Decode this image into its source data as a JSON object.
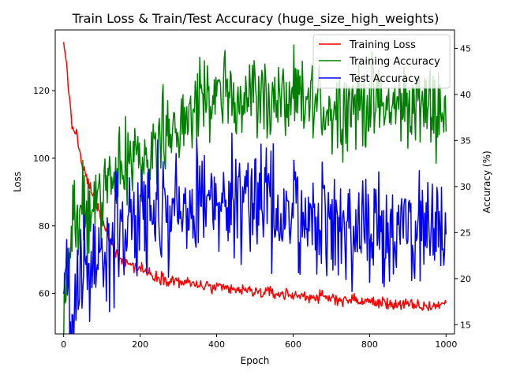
{
  "chart_data": {
    "type": "line",
    "title": "Train Loss & Train/Test Accuracy (huge_size_high_weights)",
    "xlabel": "Epoch",
    "ylabel": "Loss",
    "y2label": "Accuracy (%)",
    "xlim": [
      -22,
      1022
    ],
    "ylim": [
      48,
      138
    ],
    "y2lim": [
      14,
      47
    ],
    "xticks": [
      0,
      200,
      400,
      600,
      800,
      1000
    ],
    "yticks": [
      60,
      80,
      100,
      120
    ],
    "y2ticks": [
      15,
      20,
      25,
      30,
      35,
      40,
      45
    ],
    "grid": false,
    "legend": "top-right",
    "series": [
      {
        "name": "Training Loss",
        "axis": "left",
        "color": "#ff0000",
        "noise": 0.9,
        "x": [
          0,
          3,
          8,
          12,
          18,
          22,
          27,
          35,
          45,
          55,
          65,
          75,
          85,
          95,
          105,
          115,
          130,
          150,
          175,
          200,
          230,
          260,
          300,
          350,
          400,
          450,
          500,
          550,
          600,
          650,
          700,
          750,
          800,
          850,
          900,
          950,
          1000
        ],
        "values": [
          133.5,
          131.5,
          128.5,
          122.0,
          113.0,
          109.5,
          108.5,
          107.0,
          99.0,
          95.5,
          92.5,
          90.0,
          86.5,
          83.5,
          80.0,
          77.5,
          73.5,
          70.5,
          68.5,
          67.5,
          65.5,
          64.5,
          63.5,
          62.5,
          61.5,
          61.0,
          60.5,
          60.0,
          59.5,
          59.0,
          58.5,
          58.0,
          57.5,
          57.0,
          56.5,
          56.0,
          57.0
        ]
      },
      {
        "name": "Training Accuracy",
        "axis": "right",
        "color": "#008000",
        "noise": 2.3,
        "x": [
          0,
          10,
          20,
          30,
          50,
          80,
          100,
          120,
          150,
          200,
          250,
          300,
          350,
          400,
          450,
          500,
          550,
          600,
          650,
          700,
          750,
          800,
          850,
          900,
          950,
          1000
        ],
        "values": [
          17.0,
          21.0,
          24.5,
          25.0,
          26.5,
          28.0,
          29.0,
          30.0,
          31.5,
          33.5,
          35.0,
          37.0,
          38.5,
          40.0,
          40.0,
          40.0,
          39.5,
          39.0,
          39.0,
          38.5,
          39.0,
          39.0,
          38.5,
          39.0,
          38.5,
          38.5
        ]
      },
      {
        "name": "Test Accuracy",
        "axis": "right",
        "color": "#0000ff",
        "noise": 3.0,
        "x": [
          0,
          8,
          15,
          20,
          30,
          40,
          60,
          80,
          100,
          130,
          160,
          200,
          250,
          300,
          350,
          400,
          450,
          500,
          550,
          600,
          650,
          700,
          750,
          800,
          850,
          900,
          950,
          1000
        ],
        "values": [
          20.0,
          25.0,
          18.0,
          15.5,
          16.5,
          19.0,
          22.0,
          21.0,
          22.0,
          24.0,
          25.5,
          26.5,
          27.0,
          27.5,
          28.0,
          29.0,
          29.0,
          28.5,
          27.5,
          27.0,
          26.5,
          26.0,
          25.5,
          25.5,
          25.5,
          25.5,
          25.0,
          24.5
        ]
      }
    ]
  }
}
